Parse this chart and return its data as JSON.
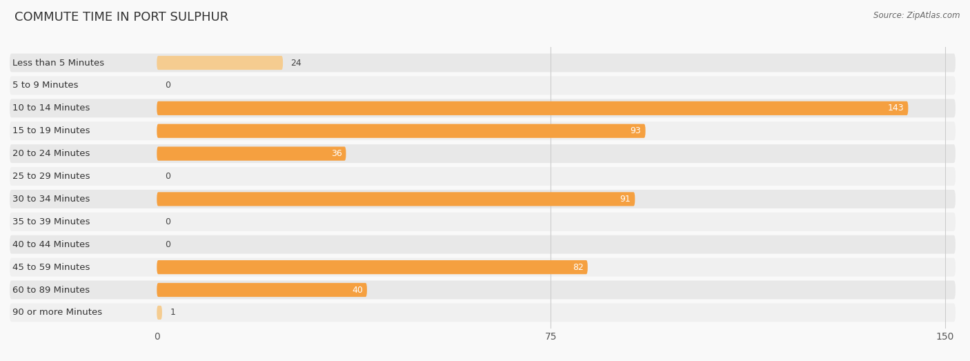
{
  "title": "COMMUTE TIME IN PORT SULPHUR",
  "source": "Source: ZipAtlas.com",
  "categories": [
    "Less than 5 Minutes",
    "5 to 9 Minutes",
    "10 to 14 Minutes",
    "15 to 19 Minutes",
    "20 to 24 Minutes",
    "25 to 29 Minutes",
    "30 to 34 Minutes",
    "35 to 39 Minutes",
    "40 to 44 Minutes",
    "45 to 59 Minutes",
    "60 to 89 Minutes",
    "90 or more Minutes"
  ],
  "values": [
    24,
    0,
    143,
    93,
    36,
    0,
    91,
    0,
    0,
    82,
    40,
    1
  ],
  "xmax": 150,
  "xticks": [
    0,
    75,
    150
  ],
  "bar_color_high": "#F5A040",
  "bar_color_low": "#F5CC90",
  "row_bg_colors": [
    "#e8e8e8",
    "#f0f0f0"
  ],
  "fig_bg": "#f9f9f9",
  "title_fontsize": 13,
  "label_fontsize": 9.5,
  "value_fontsize": 9,
  "source_fontsize": 8.5,
  "tick_fontsize": 10,
  "threshold": 30
}
